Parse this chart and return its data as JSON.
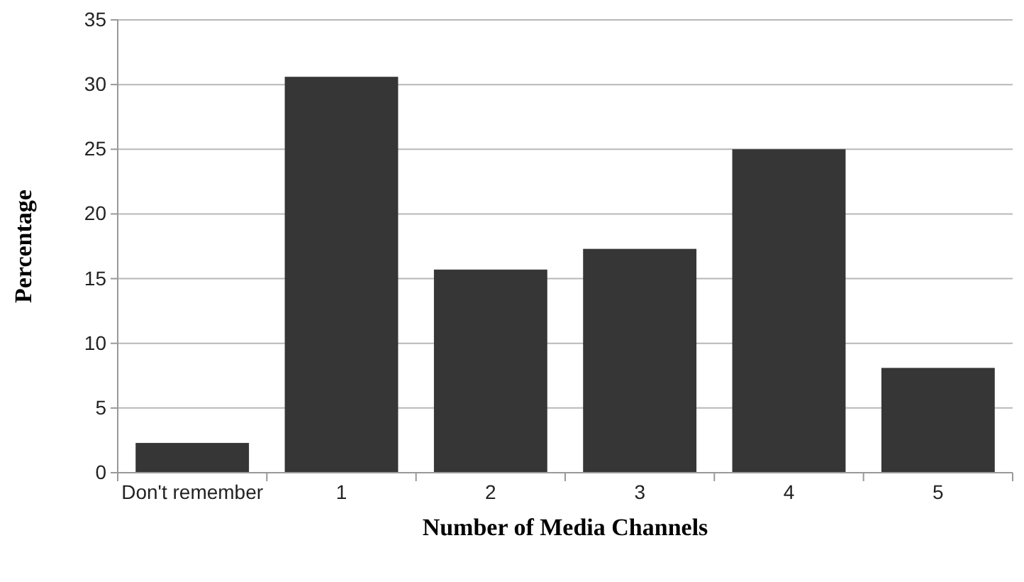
{
  "chart_data": {
    "type": "bar",
    "xlabel": "Number of Media Channels",
    "ylabel": "Percentage",
    "categories": [
      "Don't remember",
      "1",
      "2",
      "3",
      "4",
      "5"
    ],
    "values": [
      2.3,
      30.6,
      15.7,
      17.3,
      25.0,
      8.1
    ],
    "color": "#363636",
    "ylim": [
      0,
      35
    ],
    "yticks": [
      0,
      5,
      10,
      15,
      20,
      25,
      30,
      35
    ],
    "grid": "y"
  }
}
